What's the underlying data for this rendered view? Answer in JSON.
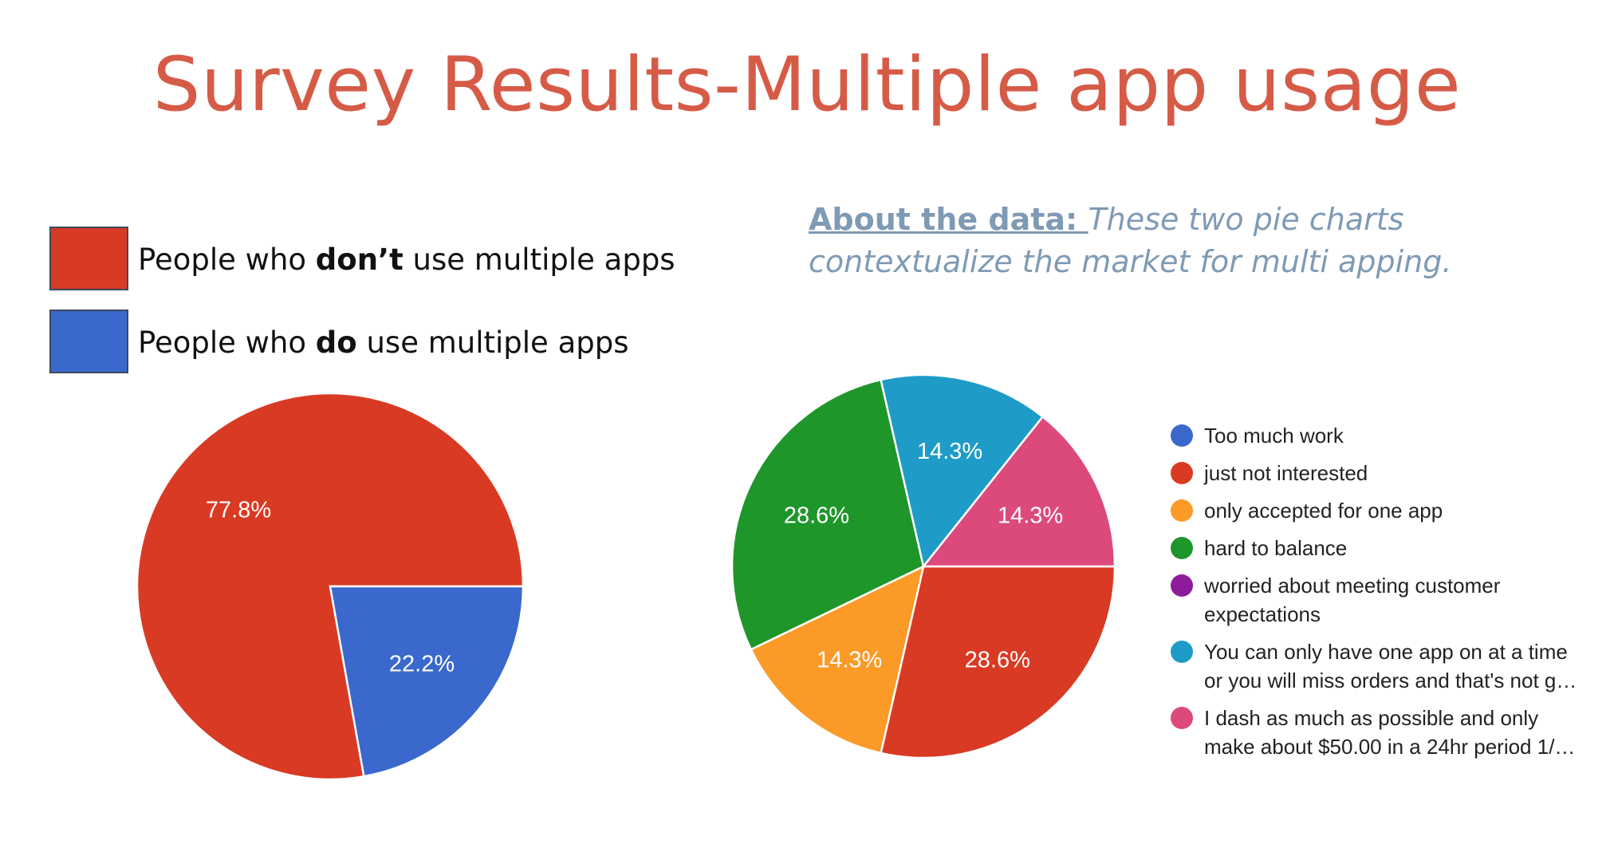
{
  "title": "Survey Results-Multiple app usage",
  "left_legend": {
    "items": [
      {
        "prefix": "People who ",
        "bold": "don’t",
        "suffix": " use multiple apps",
        "color": "#d93a24"
      },
      {
        "prefix": "People who ",
        "bold": "do",
        "suffix": " use multiple apps",
        "color": "#3a68cc"
      }
    ]
  },
  "about": {
    "lead": "About the data: ",
    "body": "These two pie charts contextualize the market for multi apping."
  },
  "chart_data": [
    {
      "type": "pie",
      "title": "",
      "slices": [
        {
          "label": "People who don’t use multiple apps",
          "value": 77.8,
          "value_label": "77.8%",
          "color": "#d93a24"
        },
        {
          "label": "People who do use multiple apps",
          "value": 22.2,
          "value_label": "22.2%",
          "color": "#3a68cc"
        }
      ]
    },
    {
      "type": "pie",
      "title": "",
      "legend": "right",
      "slices": [
        {
          "label": "Too much work",
          "value": 0,
          "value_label": "",
          "color": "#3a68cc"
        },
        {
          "label": "just not interested",
          "value": 28.6,
          "value_label": "28.6%",
          "color": "#d93a24"
        },
        {
          "label": "only accepted for one app",
          "value": 14.3,
          "value_label": "14.3%",
          "color": "#fb9a27"
        },
        {
          "label": "hard to balance",
          "value": 28.6,
          "value_label": "28.6%",
          "color": "#1f962a"
        },
        {
          "label": "worried about meeting customer",
          "label2": "expectations",
          "value": 0,
          "value_label": "",
          "color": "#8e1c9a"
        },
        {
          "label": "You can only have one app on at a time",
          "label2": "or you will miss orders and that's not g…",
          "value": 14.3,
          "value_label": "14.3%",
          "color": "#1f9bc7"
        },
        {
          "label": "I dash as much as possible and only",
          "label2": "make about $50.00 in a 24hr period 1/…",
          "value": 14.3,
          "value_label": "14.3%",
          "color": "#dc4a7c"
        }
      ]
    }
  ]
}
